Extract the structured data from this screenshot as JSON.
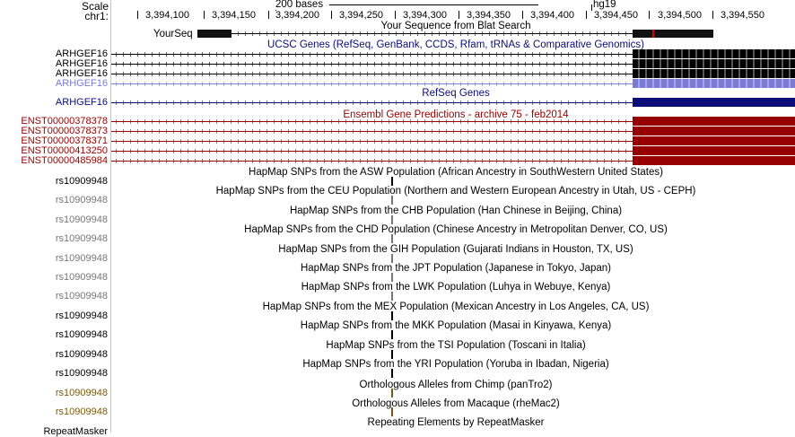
{
  "scale_row": {
    "scale_label": "Scale",
    "chrom_label": "chr1:",
    "scale_bar_label": "200 bases",
    "assembly": "hg19",
    "ticks": [
      "3,394,100",
      "3,394,150",
      "3,394,200",
      "3,394,250",
      "3,394,300",
      "3,394,350",
      "3,394,400",
      "3,394,450",
      "3,394,500",
      "3,394,550"
    ]
  },
  "blat": {
    "title": "Your Sequence from Blat Search",
    "label": "YourSeq"
  },
  "ucsc_genes": {
    "title": "UCSC Genes (RefSeq, GenBank, CCDS, Rfam, tRNAs & Comparative Genomics)",
    "labels": [
      "ARHGEF16",
      "ARHGEF16",
      "ARHGEF16",
      "ARHGEF16"
    ]
  },
  "refseq": {
    "title": "RefSeq Genes",
    "label": "ARHGEF16"
  },
  "ensembl": {
    "title": "Ensembl Gene Predictions - archive 75 - feb2014",
    "labels": [
      "ENST00000378378",
      "ENST00000378373",
      "ENST00000378371",
      "ENST00000413250",
      "ENST00000485984"
    ]
  },
  "hapmap": [
    {
      "title": "HapMap SNPs from the ASW Population (African Ancestry in SouthWestern United States)",
      "label": "rs10909948"
    },
    {
      "title": "HapMap SNPs from the CEU Population (Northern and Western European Ancestry in Utah, US - CEPH)",
      "label": "rs10909948"
    },
    {
      "title": "HapMap SNPs from the CHB Population (Han Chinese in Beijing, China)",
      "label": "rs10909948"
    },
    {
      "title": "HapMap SNPs from the CHD Population (Chinese Ancestry in Metropolitan Denver, CO, US)",
      "label": "rs10909948"
    },
    {
      "title": "HapMap SNPs from the GIH Population (Gujarati Indians in Houston, TX, US)",
      "label": "rs10909948"
    },
    {
      "title": "HapMap SNPs from the JPT Population (Japanese in Tokyo, Japan)",
      "label": "rs10909948"
    },
    {
      "title": "HapMap SNPs from the LWK Population (Luhya in Webuye, Kenya)",
      "label": "rs10909948"
    },
    {
      "title": "HapMap SNPs from the MEX Population (Mexican Ancestry in Los Angeles, CA, US)",
      "label": "rs10909948"
    },
    {
      "title": "HapMap SNPs from the MKK Population (Masai in Kinyawa, Kenya)",
      "label": "rs10909948"
    },
    {
      "title": "HapMap SNPs from the TSI Population (Toscani in Italia)",
      "label": "rs10909948"
    },
    {
      "title": "HapMap SNPs from the YRI Population (Yoruba in Ibadan, Nigeria)",
      "label": "rs10909948"
    }
  ],
  "chimp": {
    "title": "Orthologous Alleles from Chimp (panTro2)",
    "label": "rs10909948"
  },
  "macaque": {
    "title": "Orthologous Alleles from Macaque (rheMac2)",
    "label": "rs10909948"
  },
  "repeats": {
    "title": "Repeating Elements by RepeatMasker",
    "label": "RepeatMasker"
  },
  "colors": {
    "ucsc_gene": "#000000",
    "ucsc_gene_light": "#7b7bd6",
    "refseq": "#0c0c78",
    "ensembl": "#960000",
    "track_title_blue": "#0c0c78",
    "snp_gray": "#777777",
    "orthologous": "#7a5a10"
  }
}
